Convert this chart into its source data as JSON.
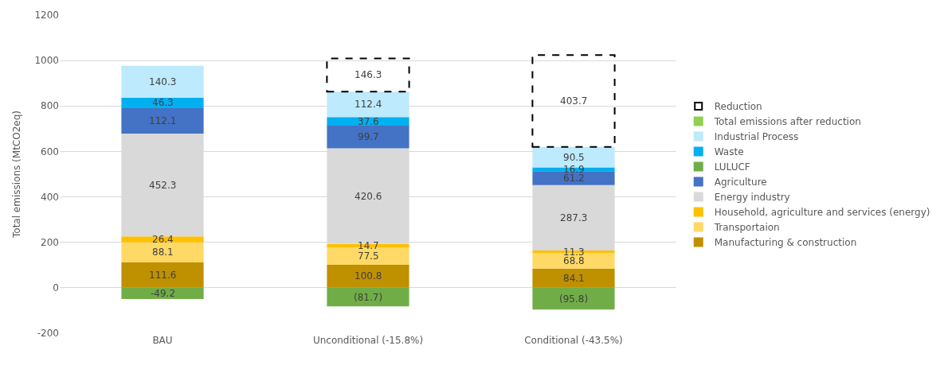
{
  "chart_data": {
    "type": "bar",
    "stacked": true,
    "ylabel": "Total emissions (MtCO2eq)",
    "categories": [
      "BAU",
      "Unconditional (-15.8%)",
      "Conditional (-43.5%)"
    ],
    "series": [
      {
        "name": "Manufacturing & construction",
        "color": "#bf9000",
        "values": [
          111.6,
          100.8,
          84.1
        ]
      },
      {
        "name": "Transportaion",
        "color": "#ffd966",
        "values": [
          88.1,
          77.5,
          68.8
        ]
      },
      {
        "name": "Household, agriculture and services (energy)",
        "color": "#ffc000",
        "values": [
          26.4,
          14.7,
          11.3
        ]
      },
      {
        "name": "Energy industry",
        "color": "#d9d9d9",
        "values": [
          452.3,
          420.6,
          287.3
        ]
      },
      {
        "name": "Agriculture",
        "color": "#4472c4",
        "values": [
          112.1,
          99.7,
          61.2
        ]
      },
      {
        "name": "LULUCF",
        "color": "#70ad47",
        "values": [
          -49.2,
          -81.7,
          -95.8
        ],
        "value_labels": [
          "-49.2",
          "(81.7)",
          "(95.8)"
        ]
      },
      {
        "name": "Waste",
        "color": "#00b0f0",
        "values": [
          46.3,
          37.6,
          16.9
        ]
      },
      {
        "name": "Industrial Process",
        "color": "#bdeafc",
        "values": [
          140.3,
          112.4,
          90.5
        ]
      },
      {
        "name": "Total emissions after reduction",
        "color": "#92d050",
        "values": [
          null,
          null,
          null
        ]
      },
      {
        "name": "Reduction",
        "color": "#000000",
        "line_style": "dashed",
        "values": [
          null,
          146.3,
          403.7
        ]
      }
    ],
    "ylim": [
      -200,
      1200
    ],
    "yticks": [
      -200,
      0,
      200,
      400,
      600,
      800,
      1000,
      1200
    ],
    "grid": "y",
    "legend": "right",
    "data_labels": true
  }
}
